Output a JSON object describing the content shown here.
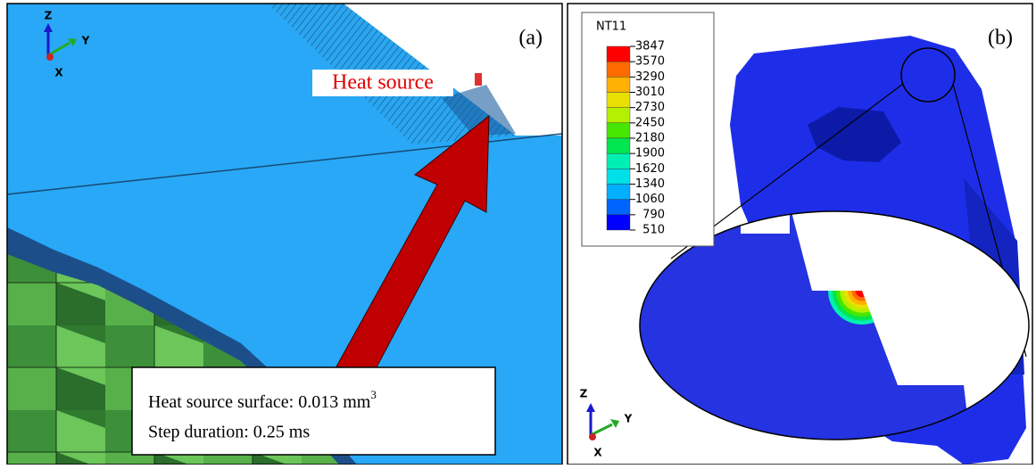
{
  "panel_a": {
    "label": "(a)",
    "heat_source_label": "Heat source",
    "info": {
      "surface_text": "Heat source surface: 0.013 mm",
      "surface_superscript": "3",
      "step_text": "Step duration: 0.25 ms"
    },
    "triad": {
      "z": "Z",
      "y": "Y",
      "x": "X"
    }
  },
  "panel_b": {
    "label": "(b)",
    "legend": {
      "title": "NT11",
      "labels": [
        "3847",
        "3570",
        "3290",
        "3010",
        "2730",
        "2450",
        "2180",
        "1900",
        "1620",
        "1340",
        "1060",
        "790",
        "510"
      ],
      "colors": [
        "#ff0000",
        "#ff6a00",
        "#ffb000",
        "#e8e000",
        "#b4f000",
        "#46e600",
        "#00e650",
        "#00f0b4",
        "#00e0e8",
        "#00b0ff",
        "#0064ff",
        "#0000ff"
      ]
    },
    "triad": {
      "z": "Z",
      "y": "Y",
      "x": "X"
    }
  }
}
